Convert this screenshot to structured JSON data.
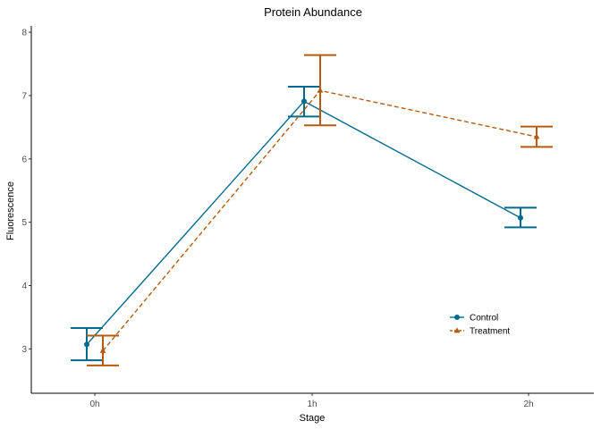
{
  "chart_data": {
    "type": "line",
    "title": "Protein Abundance",
    "xlabel": "Stage",
    "ylabel": "Fluorescence",
    "categories": [
      "0h",
      "1h",
      "2h"
    ],
    "ylim": [
      2.3,
      8.1
    ],
    "yticks": [
      3,
      4,
      5,
      6,
      7,
      8
    ],
    "grid": false,
    "legend_position": "bottom-right",
    "series": [
      {
        "name": "Control",
        "color": "#006a8e",
        "marker": "circle",
        "linestyle": "solid",
        "values": [
          3.07,
          6.91,
          5.07
        ],
        "error_low": [
          2.82,
          6.67,
          4.92
        ],
        "error_high": [
          3.33,
          7.14,
          5.23
        ]
      },
      {
        "name": "Treatment",
        "color": "#b85a0d",
        "marker": "triangle",
        "linestyle": "dashed",
        "values": [
          2.97,
          7.08,
          6.35
        ],
        "error_low": [
          2.74,
          6.53,
          6.19
        ],
        "error_high": [
          3.21,
          7.64,
          6.51
        ]
      }
    ]
  }
}
